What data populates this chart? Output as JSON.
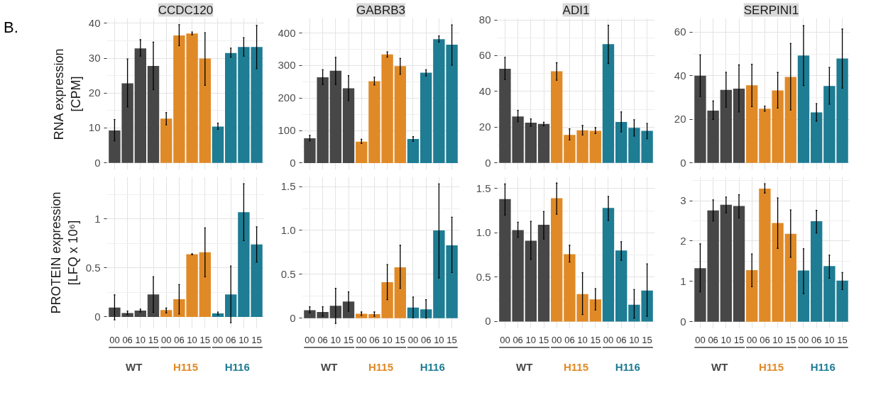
{
  "chart_data": [
    {
      "type": "bar",
      "title": "CCDC120",
      "ylabel": "RNA expression\n[CPM]",
      "annotations": [
        "B."
      ],
      "categories": [
        "00",
        "06",
        "10",
        "15",
        "00",
        "06",
        "10",
        "15",
        "00",
        "06",
        "10",
        "15"
      ],
      "series": [
        {
          "color": "#474747",
          "values": [
            9.3,
            22.8,
            32.8,
            27.8,
            null,
            null,
            null,
            null,
            null,
            null,
            null,
            null
          ],
          "errors": [
            [
              6.3,
              12.4
            ],
            [
              16,
              29.8
            ],
            [
              30.6,
              35.3
            ],
            [
              21,
              34.6
            ],
            null,
            null,
            null,
            null,
            null,
            null,
            null,
            null
          ]
        },
        {
          "color": "#e08a27",
          "values": [
            null,
            null,
            null,
            null,
            12.7,
            36.5,
            37.1,
            29.9,
            null,
            null,
            null,
            null
          ],
          "errors": [
            null,
            null,
            null,
            null,
            [
              10.9,
              14.4
            ],
            [
              33.6,
              39.6
            ],
            [
              36.7,
              37.5
            ],
            [
              22.2,
              37.3
            ],
            null,
            null,
            null,
            null
          ]
        },
        {
          "color": "#1e7c93",
          "values": [
            null,
            null,
            null,
            null,
            null,
            null,
            null,
            null,
            10.4,
            31.5,
            33.2,
            33.2
          ],
          "errors": [
            null,
            null,
            null,
            null,
            null,
            null,
            null,
            null,
            [
              9.6,
              11.4
            ],
            [
              30.3,
              32.9
            ],
            [
              30.6,
              35.9
            ],
            [
              27,
              39.4
            ]
          ]
        }
      ],
      "ylim": [
        -2,
        41.5
      ],
      "yticks": [
        0,
        10,
        20,
        30,
        40
      ],
      "grid": true,
      "tick_labels": "y"
    },
    {
      "type": "bar",
      "title": "GABRB3",
      "categories": [
        "00",
        "06",
        "10",
        "15",
        "00",
        "06",
        "10",
        "15",
        "00",
        "06",
        "10",
        "15"
      ],
      "series": [
        {
          "color": "#474747",
          "values": [
            76,
            264,
            284,
            230,
            null,
            null,
            null,
            null,
            null,
            null,
            null,
            null
          ],
          "errors": [
            [
              68,
              85
            ],
            [
              241,
              287
            ],
            [
              242,
              325
            ],
            [
              192,
              269
            ],
            null,
            null,
            null,
            null,
            null,
            null,
            null,
            null
          ]
        },
        {
          "color": "#e08a27",
          "values": [
            null,
            null,
            null,
            null,
            66,
            252,
            334,
            298,
            null,
            null,
            null,
            null
          ],
          "errors": [
            null,
            null,
            null,
            null,
            [
              60,
              73
            ],
            [
              240,
              264
            ],
            [
              326,
              342
            ],
            [
              273,
              322
            ],
            null,
            null,
            null,
            null
          ]
        },
        {
          "color": "#1e7c93",
          "values": [
            null,
            null,
            null,
            null,
            null,
            null,
            null,
            null,
            74,
            278,
            381,
            364
          ],
          "errors": [
            null,
            null,
            null,
            null,
            null,
            null,
            null,
            null,
            [
              67,
              81
            ],
            [
              268,
              287
            ],
            [
              372,
              391
            ],
            [
              301,
              425
            ]
          ]
        }
      ],
      "ylim": [
        -21,
        446
      ],
      "yticks": [
        0,
        100,
        200,
        300,
        400
      ],
      "grid": true,
      "tick_labels": "y"
    },
    {
      "type": "bar",
      "title": "ADI1",
      "categories": [
        "00",
        "06",
        "10",
        "15",
        "00",
        "06",
        "10",
        "15",
        "00",
        "06",
        "10",
        "15"
      ],
      "series": [
        {
          "color": "#474747",
          "values": [
            52.6,
            26,
            22.5,
            21.8,
            null,
            null,
            null,
            null,
            null,
            null,
            null,
            null
          ],
          "errors": [
            [
              46.6,
              59
            ],
            [
              23,
              29.4
            ],
            [
              20.5,
              24.6
            ],
            [
              20.8,
              22.7
            ],
            null,
            null,
            null,
            null,
            null,
            null,
            null,
            null
          ]
        },
        {
          "color": "#e08a27",
          "values": [
            null,
            null,
            null,
            null,
            51.2,
            15.6,
            18.2,
            17.9,
            null,
            null,
            null,
            null
          ],
          "errors": [
            null,
            null,
            null,
            null,
            [
              46.2,
              56
            ],
            [
              12.8,
              19.1
            ],
            [
              15.6,
              20.9
            ],
            [
              16.4,
              19.7
            ],
            null,
            null,
            null,
            null
          ]
        },
        {
          "color": "#1e7c93",
          "values": [
            null,
            null,
            null,
            null,
            null,
            null,
            null,
            null,
            66.4,
            22.9,
            19.6,
            17.9
          ],
          "errors": [
            null,
            null,
            null,
            null,
            null,
            null,
            null,
            null,
            [
              55.6,
              77
            ],
            [
              17.4,
              28.5
            ],
            [
              15,
              24.1
            ],
            [
              13.5,
              22
            ]
          ]
        }
      ],
      "ylim": [
        -3.9,
        81
      ],
      "yticks": [
        0,
        20,
        40,
        60,
        80
      ],
      "grid": true,
      "tick_labels": "y"
    },
    {
      "type": "bar",
      "title": "SERPINI1",
      "categories": [
        "00",
        "06",
        "10",
        "15",
        "00",
        "06",
        "10",
        "15",
        "00",
        "06",
        "10",
        "15"
      ],
      "series": [
        {
          "color": "#474747",
          "values": [
            40,
            24,
            33.5,
            34.1,
            null,
            null,
            null,
            null,
            null,
            null,
            null,
            null
          ],
          "errors": [
            [
              30.5,
              49.6
            ],
            [
              20,
              28.4
            ],
            [
              25.6,
              41.6
            ],
            [
              23.4,
              45
            ],
            null,
            null,
            null,
            null,
            null,
            null,
            null,
            null
          ]
        },
        {
          "color": "#e08a27",
          "values": [
            null,
            null,
            null,
            null,
            35.6,
            24.9,
            33.3,
            39.5,
            null,
            null,
            null,
            null
          ],
          "errors": [
            null,
            null,
            null,
            null,
            [
              25.8,
              45.3
            ],
            [
              23.7,
              26.1
            ],
            [
              25.2,
              41.5
            ],
            [
              24.3,
              54.8
            ],
            null,
            null,
            null,
            null
          ]
        },
        {
          "color": "#1e7c93",
          "values": [
            null,
            null,
            null,
            null,
            null,
            null,
            null,
            null,
            49.3,
            23.2,
            35.3,
            47.9
          ],
          "errors": [
            null,
            null,
            null,
            null,
            null,
            null,
            null,
            null,
            [
              35.5,
              63
            ],
            [
              19.2,
              27.2
            ],
            [
              27,
              43.8
            ],
            [
              34.3,
              61.5
            ]
          ]
        }
      ],
      "ylim": [
        -3.2,
        66.5
      ],
      "yticks": [
        0,
        20,
        40,
        60
      ],
      "grid": true,
      "tick_labels": "y"
    },
    {
      "type": "bar",
      "ylabel": "PROTEIN expression\n[LFQ x 10⁶]",
      "categories": [
        "00",
        "06",
        "10",
        "15",
        "00",
        "06",
        "10",
        "15",
        "00",
        "06",
        "10",
        "15"
      ],
      "series": [
        {
          "name": "WT",
          "color": "#474747",
          "values": [
            0.095,
            0.04,
            0.065,
            0.23,
            null,
            null,
            null,
            null,
            null,
            null,
            null,
            null
          ],
          "errors": [
            [
              -0.03,
              0.225
            ],
            [
              0.025,
              0.06
            ],
            [
              0.05,
              0.08
            ],
            [
              0.045,
              0.41
            ],
            null,
            null,
            null,
            null,
            null,
            null,
            null,
            null
          ]
        },
        {
          "name": "H115",
          "color": "#e08a27",
          "values": [
            null,
            null,
            null,
            null,
            0.07,
            0.18,
            0.64,
            0.66,
            null,
            null,
            null,
            null
          ],
          "errors": [
            null,
            null,
            null,
            null,
            [
              0.04,
              0.09
            ],
            [
              0.03,
              0.33
            ],
            [
              0.635,
              0.645
            ],
            [
              0.41,
              0.91
            ],
            null,
            null,
            null,
            null
          ]
        },
        {
          "name": "H116",
          "color": "#1e7c93",
          "values": [
            null,
            null,
            null,
            null,
            null,
            null,
            null,
            null,
            0.035,
            0.23,
            1.07,
            0.74
          ],
          "errors": [
            null,
            null,
            null,
            null,
            null,
            null,
            null,
            null,
            [
              0.02,
              0.05
            ],
            [
              -0.06,
              0.52
            ],
            [
              0.78,
              1.36
            ],
            [
              0.56,
              0.92
            ]
          ]
        }
      ],
      "ylim": [
        -0.12,
        1.43
      ],
      "yticks": [
        0,
        0.5,
        1
      ],
      "grid": true
    },
    {
      "type": "bar",
      "categories": [
        "00",
        "06",
        "10",
        "15",
        "00",
        "06",
        "10",
        "15",
        "00",
        "06",
        "10",
        "15"
      ],
      "series": [
        {
          "name": "WT",
          "color": "#474747",
          "values": [
            0.09,
            0.07,
            0.14,
            0.19,
            null,
            null,
            null,
            null,
            null,
            null,
            null,
            null
          ],
          "errors": [
            [
              0.06,
              0.13
            ],
            [
              0.02,
              0.13
            ],
            [
              -0.06,
              0.34
            ],
            [
              0.08,
              0.3
            ],
            null,
            null,
            null,
            null,
            null,
            null,
            null,
            null
          ]
        },
        {
          "name": "H115",
          "color": "#e08a27",
          "values": [
            null,
            null,
            null,
            null,
            0.05,
            0.045,
            0.41,
            0.58,
            null,
            null,
            null,
            null
          ],
          "errors": [
            null,
            null,
            null,
            null,
            [
              0.03,
              0.07
            ],
            [
              0.02,
              0.07
            ],
            [
              0.21,
              0.61
            ],
            [
              0.34,
              0.83
            ],
            null,
            null,
            null,
            null
          ]
        },
        {
          "name": "H116",
          "color": "#1e7c93",
          "values": [
            null,
            null,
            null,
            null,
            null,
            null,
            null,
            null,
            0.12,
            0.1,
            1.0,
            0.83
          ],
          "errors": [
            null,
            null,
            null,
            null,
            null,
            null,
            null,
            null,
            [
              0.005,
              0.24
            ],
            [
              0.0,
              0.21
            ],
            [
              0.46,
              1.53
            ],
            [
              0.52,
              1.15
            ]
          ]
        }
      ],
      "ylim": [
        -0.12,
        1.61
      ],
      "yticks": [
        0,
        {
          "value": 0.5,
          "label": "0.5"
        },
        {
          "value": 1,
          "label": "1.0"
        },
        {
          "value": 1.5,
          "label": "1.5"
        }
      ],
      "grid": true
    },
    {
      "type": "bar",
      "categories": [
        "00",
        "06",
        "10",
        "15",
        "00",
        "06",
        "10",
        "15",
        "00",
        "06",
        "10",
        "15"
      ],
      "series": [
        {
          "name": "WT",
          "color": "#474747",
          "values": [
            1.38,
            1.03,
            0.91,
            1.09,
            null,
            null,
            null,
            null,
            null,
            null,
            null,
            null
          ],
          "errors": [
            [
              1.2,
              1.55
            ],
            [
              0.95,
              1.12
            ],
            [
              0.7,
              1.13
            ],
            [
              0.93,
              1.24
            ],
            null,
            null,
            null,
            null,
            null,
            null,
            null,
            null
          ]
        },
        {
          "name": "H115",
          "color": "#e08a27",
          "values": [
            null,
            null,
            null,
            null,
            1.39,
            0.76,
            0.31,
            0.25,
            null,
            null,
            null,
            null
          ],
          "errors": [
            null,
            null,
            null,
            null,
            [
              1.21,
              1.56
            ],
            [
              0.67,
              0.86
            ],
            [
              0.08,
              0.55
            ],
            [
              0.13,
              0.37
            ],
            null,
            null,
            null,
            null
          ]
        },
        {
          "name": "H116",
          "color": "#1e7c93",
          "values": [
            null,
            null,
            null,
            null,
            null,
            null,
            null,
            null,
            1.28,
            0.8,
            0.19,
            0.35
          ],
          "errors": [
            null,
            null,
            null,
            null,
            null,
            null,
            null,
            null,
            [
              1.14,
              1.41
            ],
            [
              0.69,
              0.9
            ],
            [
              0.04,
              0.36
            ],
            [
              0.06,
              0.65
            ]
          ]
        }
      ],
      "ylim": [
        -0.08,
        1.63
      ],
      "yticks": [
        0,
        {
          "value": 0.5,
          "label": "0.5"
        },
        {
          "value": 1,
          "label": "1.0"
        },
        {
          "value": 1.5,
          "label": "1.5"
        }
      ],
      "grid": true
    },
    {
      "type": "bar",
      "categories": [
        "00",
        "06",
        "10",
        "15",
        "00",
        "06",
        "10",
        "15",
        "00",
        "06",
        "10",
        "15"
      ],
      "series": [
        {
          "name": "WT",
          "color": "#474747",
          "values": [
            1.33,
            2.76,
            2.9,
            2.87,
            null,
            null,
            null,
            null,
            null,
            null,
            null,
            null
          ],
          "errors": [
            [
              0.74,
              1.93
            ],
            [
              2.5,
              3.02
            ],
            [
              2.7,
              3.09
            ],
            [
              2.58,
              3.15
            ],
            null,
            null,
            null,
            null,
            null,
            null,
            null,
            null
          ]
        },
        {
          "name": "H115",
          "color": "#e08a27",
          "values": [
            null,
            null,
            null,
            null,
            1.28,
            3.3,
            2.45,
            2.18,
            null,
            null,
            null,
            null
          ],
          "errors": [
            null,
            null,
            null,
            null,
            [
              0.87,
              1.68
            ],
            [
              3.19,
              3.42
            ],
            [
              1.82,
              3.07
            ],
            [
              1.6,
              2.77
            ],
            null,
            null,
            null,
            null
          ]
        },
        {
          "name": "H116",
          "color": "#1e7c93",
          "values": [
            null,
            null,
            null,
            null,
            null,
            null,
            null,
            null,
            1.27,
            2.49,
            1.38,
            1.02
          ],
          "errors": [
            null,
            null,
            null,
            null,
            null,
            null,
            null,
            null,
            [
              0.7,
              1.81
            ],
            [
              2.2,
              2.76
            ],
            [
              1.08,
              1.65
            ],
            [
              0.8,
              1.22
            ]
          ]
        }
      ],
      "ylim": [
        -0.17,
        3.59
      ],
      "yticks": [
        0,
        1,
        2,
        3
      ],
      "grid": true
    }
  ]
}
